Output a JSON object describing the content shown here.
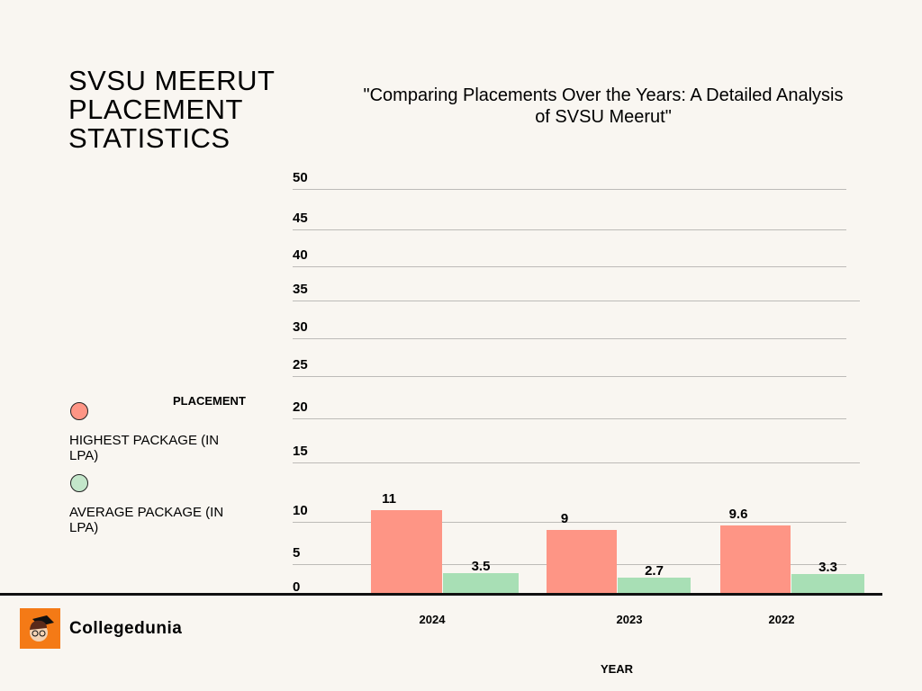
{
  "header": {
    "title_lines": [
      "SVSU MEERUT",
      "PLACEMENT",
      "STATISTICS"
    ]
  },
  "chart_data": {
    "type": "bar",
    "title": "\"Comparing Placements Over the Years: A Detailed Analysis of SVSU Meerut\"",
    "xlabel": "YEAR",
    "ylabel": "",
    "categories": [
      "2024",
      "2023",
      "2022"
    ],
    "series": [
      {
        "name": "HIGHEST PACKAGE (IN LPA)",
        "values": [
          11,
          9,
          9.6
        ],
        "color": "#fe9585"
      },
      {
        "name": "AVERAGE PACKAGE (IN LPA)",
        "values": [
          3.5,
          2.7,
          3.3
        ],
        "color": "#a8dfb5"
      }
    ],
    "data_labels": [
      [
        "11",
        "9",
        "9.6"
      ],
      [
        "3.5",
        "2.7",
        "3.3"
      ]
    ],
    "yticks": [
      "0",
      "5",
      "10",
      "15",
      "20",
      "25",
      "30",
      "35",
      "40",
      "45",
      "50"
    ],
    "ylim": [
      0,
      50
    ],
    "grid": true,
    "legend_title": "PLACEMENT",
    "legend_position": "left"
  },
  "branding": {
    "name": "Collegedunia",
    "color": "#f47a16"
  }
}
